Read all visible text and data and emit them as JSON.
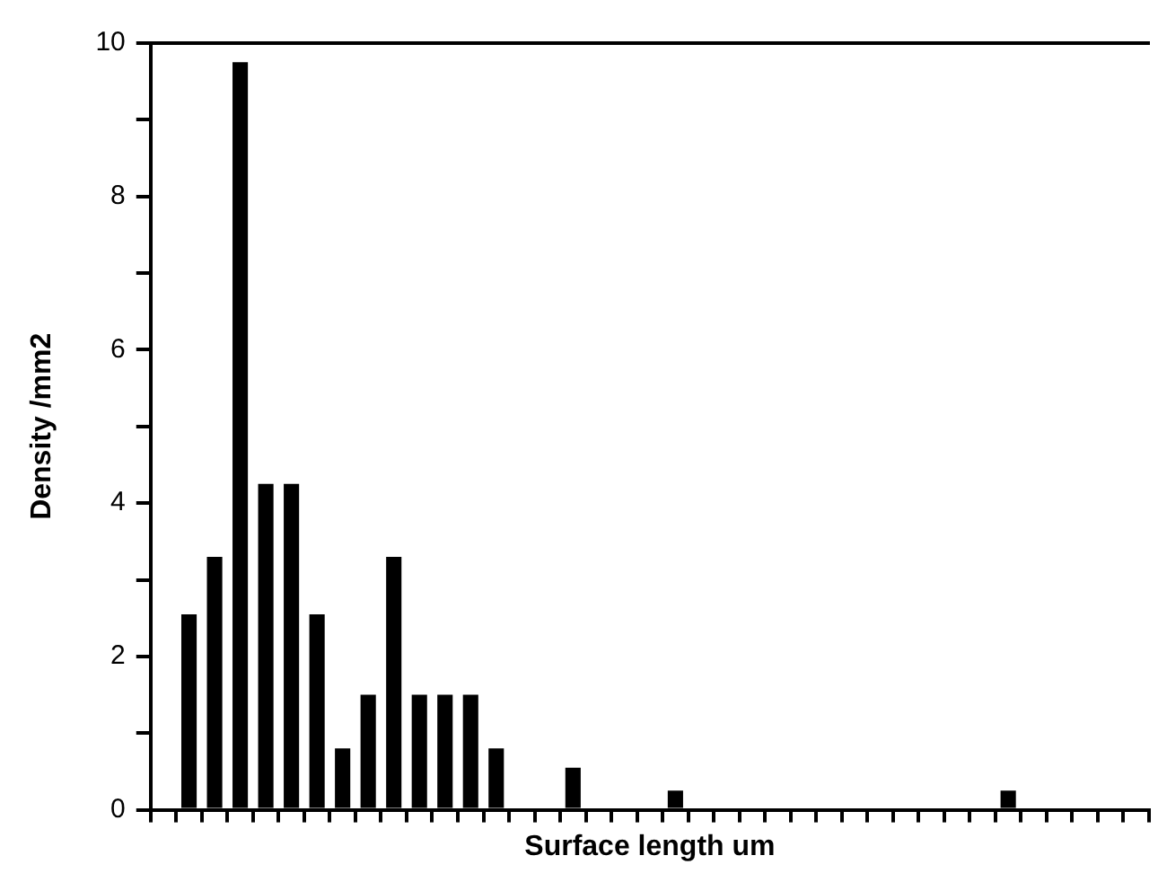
{
  "chart_data": {
    "type": "bar",
    "xlabel": "Surface length um",
    "ylabel": "Density /mm2",
    "categories": [
      null,
      null,
      null,
      null,
      null,
      null,
      null,
      null,
      null,
      null,
      null,
      null,
      null,
      null,
      null,
      null,
      null,
      null,
      null,
      null,
      null,
      null,
      null,
      null,
      null,
      null,
      null,
      null,
      null,
      null,
      null,
      null,
      null,
      null,
      null,
      null,
      null,
      null,
      null
    ],
    "values": [
      null,
      2.55,
      3.3,
      9.75,
      4.25,
      4.25,
      2.55,
      0.8,
      1.5,
      3.3,
      1.5,
      1.5,
      1.5,
      0.8,
      null,
      null,
      0.55,
      null,
      null,
      null,
      0.25,
      null,
      null,
      null,
      null,
      null,
      null,
      null,
      null,
      null,
      null,
      null,
      null,
      0.25,
      null,
      null,
      null,
      null,
      null
    ],
    "color": "#000000",
    "ylim": [
      0,
      10
    ],
    "yticks": [
      0,
      {
        "value": 1,
        "label": null
      },
      2,
      {
        "value": 3,
        "label": null
      },
      4,
      {
        "value": 5,
        "label": null
      },
      6,
      {
        "value": 7,
        "label": null
      },
      8,
      {
        "value": 9,
        "label": null
      },
      10
    ],
    "tick_labels": "y",
    "grid": false,
    "legend": false
  }
}
